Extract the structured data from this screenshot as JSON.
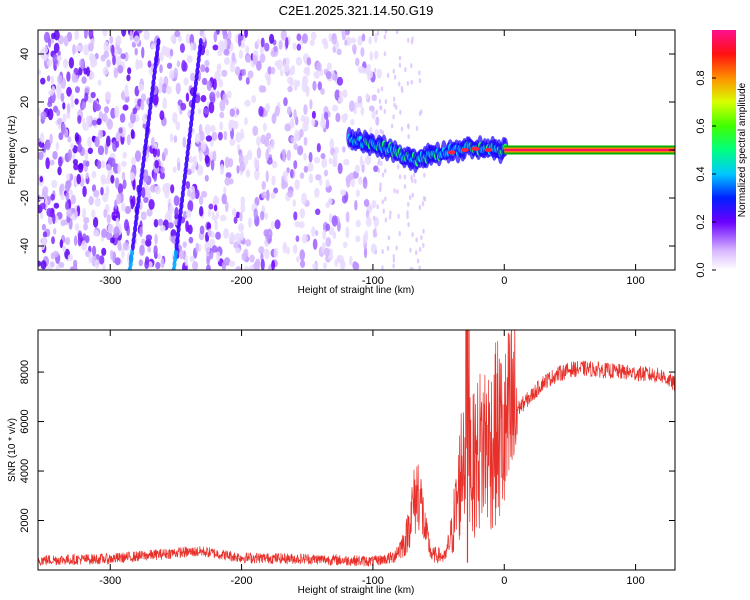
{
  "chart_data": [
    {
      "type": "heatmap",
      "title": "C2E1.2025.321.14.50.G19",
      "xlabel": "Height of straight line (km)",
      "ylabel": "Frequency (Hz)",
      "xlim": [
        -355,
        130
      ],
      "ylim": [
        -50,
        50
      ],
      "xticks": [
        -300,
        -200,
        -100,
        0,
        100
      ],
      "xtick_labels": [
        "-300",
        "-200",
        "-100",
        "0",
        "100"
      ],
      "yticks": [
        -40,
        -20,
        0,
        20,
        40
      ],
      "ytick_labels": [
        "-40",
        "-20",
        "0",
        "20",
        "40"
      ],
      "colorbar": {
        "label": "Normalized spectral amplitude",
        "range": [
          0,
          1
        ],
        "ticks": [
          0.0,
          0.2,
          0.4,
          0.6,
          0.8
        ],
        "tick_labels": [
          "0.0",
          "0.2",
          "0.4",
          "0.6",
          "0.8"
        ]
      },
      "features": {
        "noise_extent_km": [
          -355,
          -95
        ],
        "signal_track": {
          "x_km": [
            -118,
            -105,
            -95,
            -85,
            -75,
            -65,
            -55,
            -45,
            -35,
            -25,
            -15,
            -5,
            0,
            130
          ],
          "freq_hz": [
            5,
            3,
            2,
            0,
            -3,
            -4,
            -2,
            -1,
            0,
            1,
            0.5,
            0,
            0,
            0
          ]
        }
      }
    },
    {
      "type": "line",
      "title": "",
      "xlabel": "Height of straight line (km)",
      "ylabel": "SNR (10 * v/v)",
      "xlim": [
        -355,
        130
      ],
      "ylim": [
        0,
        9700
      ],
      "xticks": [
        -300,
        -200,
        -100,
        0,
        100
      ],
      "xtick_labels": [
        "-300",
        "-200",
        "-100",
        "0",
        "100"
      ],
      "yticks": [
        2000,
        4000,
        6000,
        8000
      ],
      "ytick_labels": [
        "2000",
        "4000",
        "6000",
        "8000"
      ],
      "color": "#e8302a",
      "series": [
        {
          "name": "SNR",
          "x": [
            -355,
            -300,
            -250,
            -230,
            -200,
            -150,
            -100,
            -85,
            -75,
            -70,
            -65,
            -60,
            -55,
            -50,
            -45,
            -40,
            -35,
            -30,
            -28,
            -25,
            -20,
            -15,
            -10,
            -5,
            0,
            5,
            10,
            20,
            30,
            40,
            50,
            60,
            70,
            80,
            90,
            100,
            110,
            120,
            130
          ],
          "y": [
            400,
            450,
            700,
            750,
            500,
            450,
            350,
            500,
            1200,
            2500,
            3300,
            1500,
            600,
            600,
            500,
            1500,
            3000,
            5500,
            9700,
            4000,
            4700,
            5200,
            5000,
            5600,
            5200,
            6200,
            6500,
            7000,
            7600,
            7900,
            8100,
            8150,
            8100,
            8050,
            8000,
            7950,
            7900,
            7850,
            7500
          ]
        }
      ]
    }
  ]
}
